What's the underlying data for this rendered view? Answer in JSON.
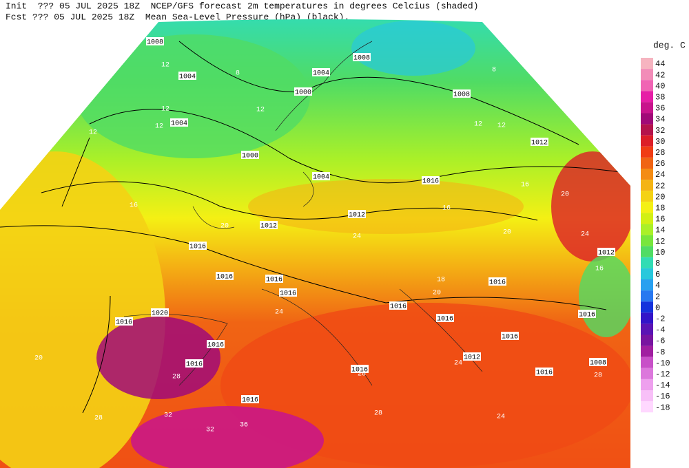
{
  "header": {
    "line1": "Init  ??? 05 JUL 2025 18Z  NCEP/GFS forecast 2m temperatures in degrees Celcius (shaded)",
    "line2": "Fcst ??? 05 JUL 2025 18Z  Mean Sea-Level Pressure (hPa) (black)."
  },
  "legend": {
    "title": "deg. C",
    "items": [
      {
        "value": 44,
        "color": "#f6b4c0"
      },
      {
        "value": 42,
        "color": "#f28cb8"
      },
      {
        "value": 40,
        "color": "#f064b4"
      },
      {
        "value": 38,
        "color": "#e61ea6"
      },
      {
        "value": 36,
        "color": "#c8148c"
      },
      {
        "value": 34,
        "color": "#a00a78"
      },
      {
        "value": 32,
        "color": "#b4144c"
      },
      {
        "value": 30,
        "color": "#dc1e28"
      },
      {
        "value": 28,
        "color": "#f03c14"
      },
      {
        "value": 26,
        "color": "#f06414"
      },
      {
        "value": 24,
        "color": "#f48c14"
      },
      {
        "value": 22,
        "color": "#f4b414"
      },
      {
        "value": 20,
        "color": "#f4d214"
      },
      {
        "value": 18,
        "color": "#f4f014"
      },
      {
        "value": 16,
        "color": "#d2f014"
      },
      {
        "value": 14,
        "color": "#aaf028"
      },
      {
        "value": 12,
        "color": "#78e63c"
      },
      {
        "value": 10,
        "color": "#50dc64"
      },
      {
        "value": 8,
        "color": "#32dcb4"
      },
      {
        "value": 6,
        "color": "#28c8dc"
      },
      {
        "value": 4,
        "color": "#28a0f0"
      },
      {
        "value": 2,
        "color": "#2878f0"
      },
      {
        "value": 0,
        "color": "#1432dc"
      },
      {
        "value": -2,
        "color": "#3214c8"
      },
      {
        "value": -4,
        "color": "#5a14b4"
      },
      {
        "value": -6,
        "color": "#7814a0"
      },
      {
        "value": -8,
        "color": "#a01ea0"
      },
      {
        "value": -10,
        "color": "#c850c8"
      },
      {
        "value": -12,
        "color": "#dc78dc"
      },
      {
        "value": -14,
        "color": "#eea0ee"
      },
      {
        "value": -16,
        "color": "#f8c0f8"
      },
      {
        "value": -18,
        "color": "#ffd8ff"
      }
    ]
  },
  "map": {
    "pressure_labels": [
      "1008",
      "1004",
      "1004",
      "1000",
      "1000",
      "1004",
      "1008",
      "1008",
      "1012",
      "1016",
      "1004",
      "1012",
      "1012",
      "1016",
      "1016",
      "1016",
      "1016",
      "1020",
      "1016",
      "1016",
      "1016",
      "1016",
      "1016",
      "1016",
      "1016",
      "1016",
      "1016",
      "1016",
      "1008",
      "1012",
      "1016",
      "1012"
    ],
    "temperature_labels": [
      "8",
      "12",
      "12",
      "12",
      "12",
      "12",
      "8",
      "12",
      "12",
      "16",
      "16",
      "16",
      "20",
      "20",
      "24",
      "20",
      "24",
      "16",
      "18",
      "20",
      "24",
      "28",
      "28",
      "24",
      "24",
      "28",
      "20",
      "32",
      "32",
      "36",
      "28",
      "28"
    ]
  }
}
